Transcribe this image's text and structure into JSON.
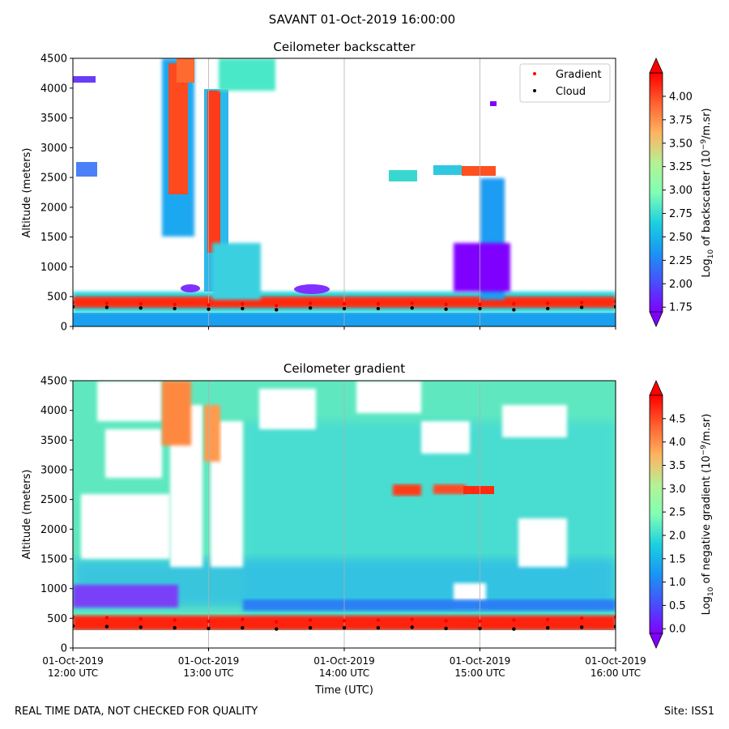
{
  "figure": {
    "title": "SAVANT 01-Oct-2019 16:00:00",
    "footer_left": "REAL TIME DATA, NOT CHECKED FOR QUALITY",
    "footer_right": "Site: ISS1"
  },
  "chart_data": [
    {
      "type": "heatmap",
      "title": "Ceilometer backscatter",
      "xlabel": "",
      "ylabel": "Altitude (meters)",
      "ylim": [
        0,
        4500
      ],
      "xlim": [
        "12:00",
        "16:00"
      ],
      "yticks": [
        "0",
        "500",
        "1000",
        "1500",
        "2000",
        "2500",
        "3000",
        "3500",
        "4000",
        "4500"
      ],
      "colorbar": {
        "label": "Log10 of backscatter (10^-9/m.sr)",
        "label_parts": [
          "Log",
          "10",
          " of backscatter (10",
          "−9",
          "/m.sr)"
        ],
        "ticks": [
          "1.75",
          "2.00",
          "2.25",
          "2.50",
          "2.75",
          "3.00",
          "3.25",
          "3.50",
          "3.75",
          "4.00"
        ],
        "range": [
          1.7,
          4.25
        ],
        "colormap": "rainbow",
        "extend": "both"
      },
      "legend": {
        "placement": "top-right",
        "entries": [
          {
            "label": "Gradient",
            "color": "#ff0000",
            "marker": "dot"
          },
          {
            "label": "Cloud",
            "color": "#000000",
            "marker": "dot"
          }
        ]
      },
      "grid": "vertical lines at hours",
      "series": [
        {
          "name": "Gradient",
          "color": "#ff0000",
          "x": [
            "12:00",
            "12:15",
            "12:30",
            "12:45",
            "13:00",
            "13:15",
            "13:30",
            "13:45",
            "14:00",
            "14:15",
            "14:30",
            "14:45",
            "15:00",
            "15:15",
            "15:30",
            "15:45",
            "16:00"
          ],
          "y": [
            400,
            390,
            380,
            370,
            360,
            380,
            350,
            390,
            380,
            380,
            390,
            370,
            370,
            380,
            390,
            400,
            420
          ]
        },
        {
          "name": "Cloud",
          "color": "#000000",
          "x": [
            "12:00",
            "12:15",
            "12:30",
            "12:45",
            "13:00",
            "13:15",
            "13:30",
            "13:45",
            "14:00",
            "14:15",
            "14:30",
            "14:45",
            "15:00",
            "15:15",
            "15:30",
            "15:45",
            "16:00"
          ],
          "y": [
            330,
            320,
            310,
            300,
            290,
            300,
            280,
            310,
            300,
            300,
            310,
            290,
            300,
            280,
            300,
            320,
            330
          ]
        }
      ]
    },
    {
      "type": "heatmap",
      "title": "Ceilometer gradient",
      "xlabel": "Time (UTC)",
      "ylabel": "Altitude (meters)",
      "ylim": [
        0,
        4500
      ],
      "xlim": [
        "12:00",
        "16:00"
      ],
      "yticks": [
        "0",
        "500",
        "1000",
        "1500",
        "2000",
        "2500",
        "3000",
        "3500",
        "4000",
        "4500"
      ],
      "xticks": [
        {
          "date": "01-Oct-2019",
          "time": "12:00 UTC"
        },
        {
          "date": "01-Oct-2019",
          "time": "13:00 UTC"
        },
        {
          "date": "01-Oct-2019",
          "time": "14:00 UTC"
        },
        {
          "date": "01-Oct-2019",
          "time": "15:00 UTC"
        },
        {
          "date": "01-Oct-2019",
          "time": "16:00 UTC"
        }
      ],
      "colorbar": {
        "label": "Log10 of negative gradient (10^-9/m.sr)",
        "label_parts": [
          "Log",
          "10",
          " of negative gradient (10",
          "−9",
          "/m.sr)"
        ],
        "ticks": [
          "0.0",
          "0.5",
          "1.0",
          "1.5",
          "2.0",
          "2.5",
          "3.0",
          "3.5",
          "4.0",
          "4.5"
        ],
        "range": [
          -0.1,
          5.0
        ],
        "colormap": "rainbow",
        "extend": "both"
      },
      "grid": "vertical lines at hours",
      "series": [
        {
          "name": "Gradient",
          "color": "#ff0000",
          "x": [
            "12:00",
            "12:15",
            "12:30",
            "12:45",
            "13:00",
            "13:15",
            "13:30",
            "13:45",
            "14:00",
            "14:15",
            "14:30",
            "14:45",
            "15:00",
            "15:15",
            "15:30",
            "15:45",
            "16:00"
          ],
          "y": [
            520,
            510,
            490,
            470,
            450,
            480,
            440,
            470,
            460,
            470,
            480,
            460,
            450,
            470,
            480,
            500,
            520
          ]
        },
        {
          "name": "Cloud",
          "color": "#000000",
          "x": [
            "12:00",
            "12:15",
            "12:30",
            "12:45",
            "13:00",
            "13:15",
            "13:30",
            "13:45",
            "14:00",
            "14:15",
            "14:30",
            "14:45",
            "15:00",
            "15:15",
            "15:30",
            "15:45",
            "16:00"
          ],
          "y": [
            370,
            360,
            350,
            340,
            330,
            340,
            320,
            340,
            340,
            340,
            350,
            330,
            330,
            320,
            340,
            350,
            360
          ]
        }
      ]
    }
  ]
}
